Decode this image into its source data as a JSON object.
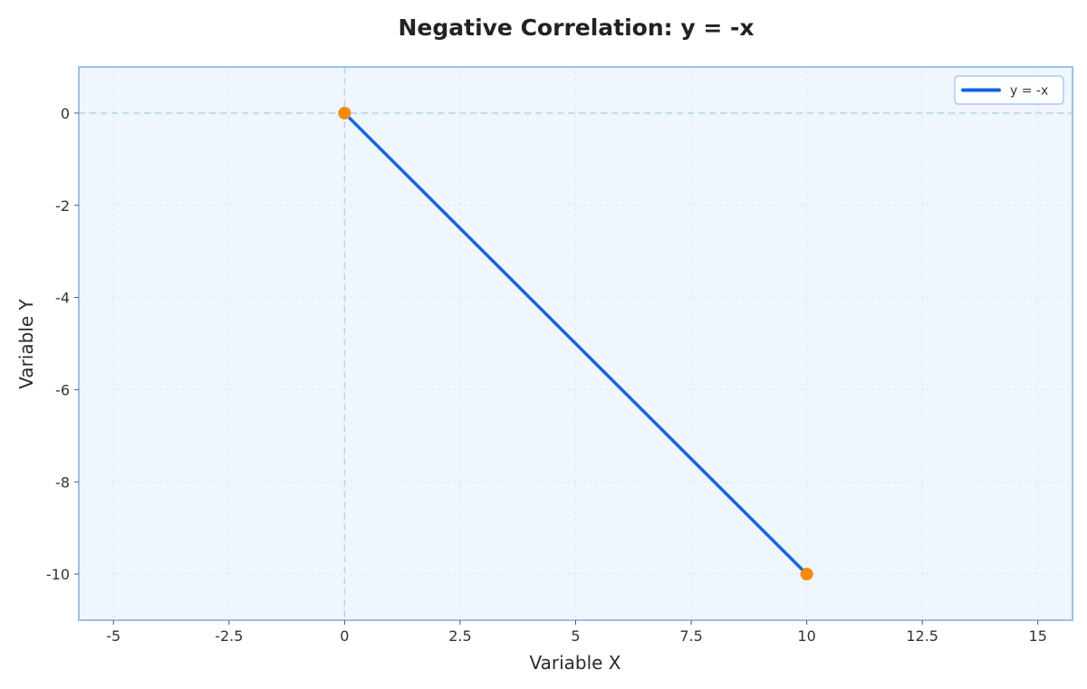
{
  "chart_data": {
    "type": "line",
    "title": "Negative Correlation: y = -x",
    "xlabel": "Variable X",
    "ylabel": "Variable Y",
    "xlim": [
      -5.75,
      15.75
    ],
    "ylim": [
      -11,
      1
    ],
    "x_ticks": [
      -5,
      -2.5,
      0,
      2.5,
      5,
      7.5,
      10,
      12.5,
      15
    ],
    "x_tick_labels": [
      "-5",
      "-2.5",
      "0",
      "2.5",
      "5",
      "7.5",
      "10",
      "12.5",
      "15"
    ],
    "y_ticks": [
      0,
      -2,
      -4,
      -6,
      -8,
      -10
    ],
    "y_tick_labels": [
      "0",
      "-2",
      "-4",
      "-6",
      "-8",
      "-10"
    ],
    "grid": true,
    "reference_lines": {
      "x": 0,
      "y": 0
    },
    "legend_position": "top-right",
    "series": [
      {
        "name": "y = -x",
        "x": [
          0,
          10
        ],
        "y": [
          0,
          -10
        ],
        "color": "#1565e0",
        "marker_color": "#f58a0b"
      }
    ],
    "colors": {
      "plot_background": "#eff6fd",
      "plot_border": "#9dbfe9",
      "grid": "#d4e0ee",
      "reference_line": "#b9d3f2"
    }
  }
}
